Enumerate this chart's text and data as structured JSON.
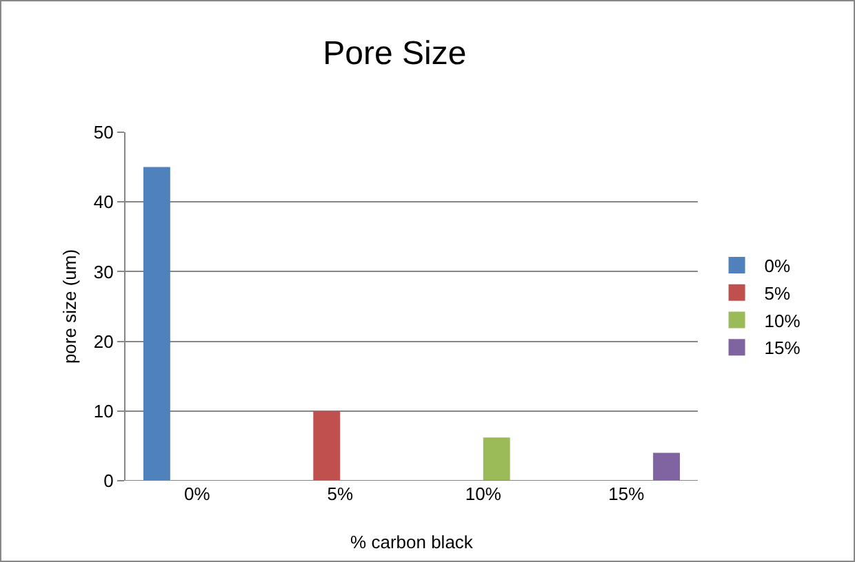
{
  "chart_data": {
    "type": "bar",
    "title": "Pore Size",
    "xlabel": "% carbon black",
    "ylabel": "pore size (um)",
    "categories": [
      "0%",
      "5%",
      "10%",
      "15%"
    ],
    "series": [
      {
        "name": "0%",
        "color": "#4f81bd",
        "values": [
          45,
          null,
          null,
          null
        ]
      },
      {
        "name": "5%",
        "color": "#c0504d",
        "values": [
          null,
          10,
          null,
          null
        ]
      },
      {
        "name": "10%",
        "color": "#9bbb59",
        "values": [
          null,
          null,
          6.2,
          null
        ]
      },
      {
        "name": "15%",
        "color": "#8064a2",
        "values": [
          null,
          null,
          null,
          4
        ]
      }
    ],
    "ylim": [
      0,
      50
    ],
    "yticks": [
      0,
      10,
      20,
      30,
      40,
      50
    ],
    "grid": "y",
    "legend": "right"
  }
}
